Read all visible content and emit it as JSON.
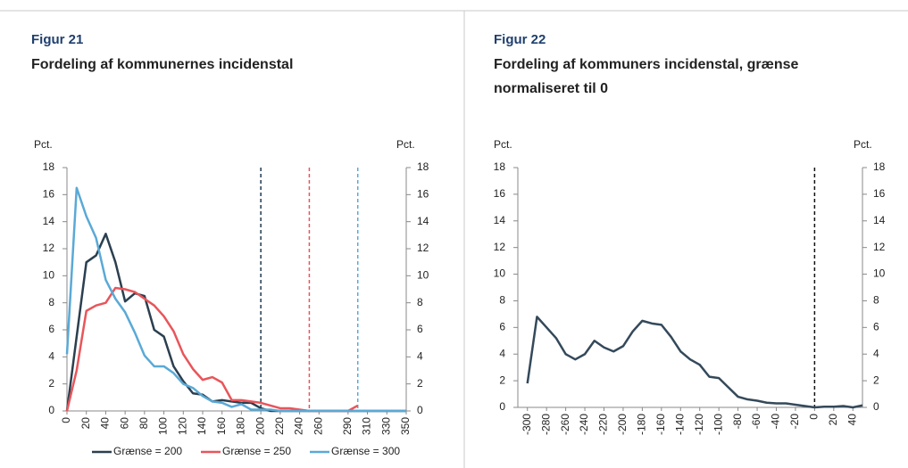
{
  "chart_data": [
    {
      "type": "line",
      "figure_label": "Figur 21",
      "title": "Fordeling af kommunernes incidenstal",
      "ylabel": "Pct.",
      "y2label": "Pct.",
      "x": [
        0,
        10,
        20,
        30,
        40,
        50,
        60,
        70,
        80,
        90,
        100,
        110,
        120,
        130,
        140,
        150,
        160,
        170,
        180,
        190,
        200,
        210,
        220,
        230,
        240,
        250,
        260,
        270,
        280,
        290,
        300,
        310,
        320,
        330,
        340,
        350
      ],
      "xlim": [
        0,
        350
      ],
      "xticks": [
        0,
        20,
        40,
        60,
        80,
        100,
        120,
        140,
        160,
        180,
        200,
        220,
        240,
        260,
        290,
        310,
        330,
        350
      ],
      "ylim": [
        0,
        18
      ],
      "yticks": [
        0,
        2,
        4,
        6,
        8,
        10,
        12,
        14,
        16,
        18
      ],
      "y2lim": [
        0,
        18
      ],
      "y2ticks": [
        0,
        2,
        4,
        6,
        8,
        10,
        12,
        14,
        16,
        18
      ],
      "legend": "bottom",
      "vlines": [
        {
          "x": 200,
          "color": "#1f3a4f"
        },
        {
          "x": 250,
          "color": "#e8555a"
        },
        {
          "x": 300,
          "color": "#5aa9d6"
        }
      ],
      "series": [
        {
          "name": "Grænse = 200",
          "color": "#2b3f4f",
          "values": [
            0,
            5.5,
            11,
            11.5,
            13.1,
            11,
            8.1,
            8.7,
            8.5,
            6,
            5.5,
            3.3,
            2.2,
            1.3,
            1.2,
            0.7,
            0.8,
            0.7,
            0.6,
            0.6,
            0.2,
            0,
            0,
            0,
            0,
            0,
            0,
            0,
            0,
            0,
            0,
            0,
            0,
            0,
            0,
            0
          ]
        },
        {
          "name": "Grænse = 250",
          "color": "#e8555a",
          "values": [
            0,
            3,
            7.4,
            7.8,
            8,
            9.1,
            9,
            8.8,
            8.3,
            7.8,
            7,
            5.9,
            4.2,
            3.1,
            2.3,
            2.5,
            2.1,
            0.8,
            0.8,
            0.7,
            0.6,
            0.4,
            0.2,
            0.2,
            0.1,
            0,
            0,
            0,
            0,
            0,
            0.4,
            null,
            null,
            null,
            null,
            null
          ]
        },
        {
          "name": "Grænse = 300",
          "color": "#5aa9d6",
          "values": [
            4.2,
            16.5,
            14.4,
            12.8,
            9.7,
            8.3,
            7.3,
            5.8,
            4.1,
            3.3,
            3.3,
            2.8,
            2,
            1.7,
            1.1,
            0.7,
            0.6,
            0.3,
            0.5,
            0.1,
            0.1,
            0.1,
            0,
            0,
            0,
            0,
            0,
            0,
            0,
            0,
            0,
            0,
            0,
            0,
            0,
            0
          ]
        }
      ]
    },
    {
      "type": "line",
      "figure_label": "Figur 22",
      "title": "Fordeling af kommuners incidenstal, grænse normaliseret til 0",
      "ylabel": "Pct.",
      "y2label": "Pct.",
      "x": [
        -300,
        -290,
        -280,
        -270,
        -260,
        -250,
        -240,
        -230,
        -220,
        -210,
        -200,
        -190,
        -180,
        -170,
        -160,
        -150,
        -140,
        -130,
        -120,
        -110,
        -100,
        -90,
        -80,
        -70,
        -60,
        -50,
        -40,
        -30,
        -20,
        -10,
        0,
        10,
        20,
        30,
        40,
        50
      ],
      "xlim": [
        -310,
        50
      ],
      "xticks": [
        -300,
        -280,
        -260,
        -240,
        -220,
        -200,
        -180,
        -160,
        -140,
        -120,
        -100,
        -80,
        -60,
        -40,
        -20,
        0,
        20,
        40
      ],
      "ylim": [
        0,
        18
      ],
      "yticks": [
        0,
        2,
        4,
        6,
        8,
        10,
        12,
        14,
        16,
        18
      ],
      "y2lim": [
        0,
        18
      ],
      "y2ticks": [
        0,
        2,
        4,
        6,
        8,
        10,
        12,
        14,
        16,
        18
      ],
      "vlines": [
        {
          "x": 0,
          "color": "#111111"
        }
      ],
      "color": "#34495a",
      "values": [
        1.8,
        6.8,
        6,
        5.2,
        4,
        3.6,
        4,
        5,
        4.5,
        4.2,
        4.6,
        5.7,
        6.5,
        6.3,
        6.2,
        5.3,
        4.2,
        3.6,
        3.2,
        2.3,
        2.2,
        1.5,
        0.8,
        0.6,
        0.5,
        0.35,
        0.3,
        0.3,
        0.2,
        0.1,
        0,
        0.05,
        0.05,
        0.1,
        0,
        0.15
      ]
    }
  ]
}
